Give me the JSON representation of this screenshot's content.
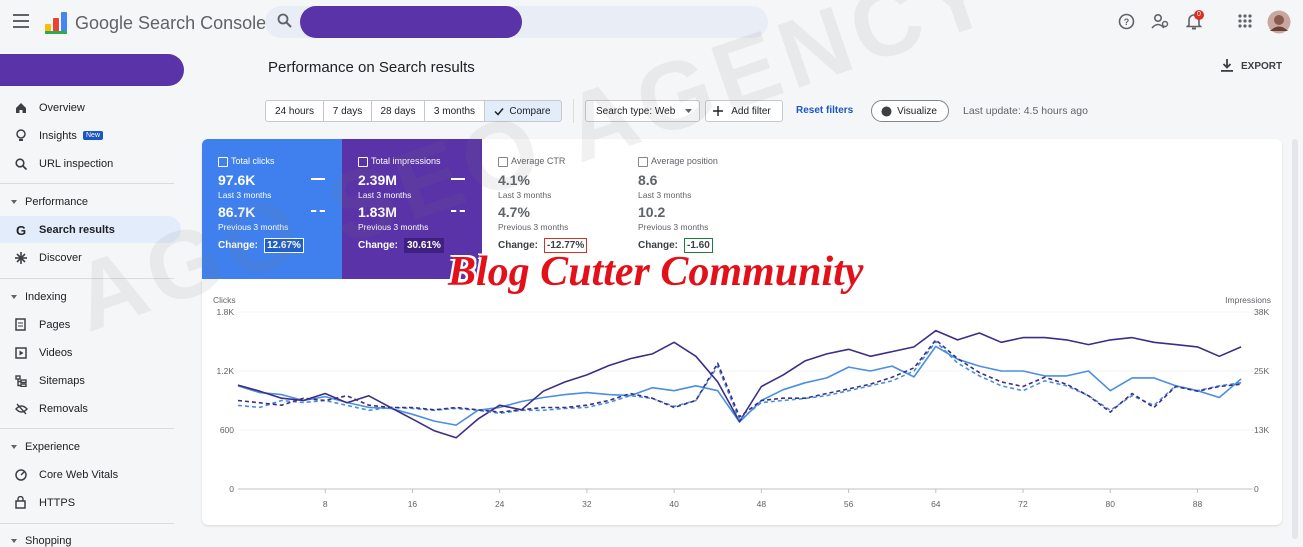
{
  "header": {
    "product": "Google Search Console",
    "notification_count": "0"
  },
  "sidebar": {
    "items": [
      {
        "label": "Overview"
      },
      {
        "label": "Insights",
        "badge": "New"
      },
      {
        "label": "URL inspection"
      }
    ],
    "sections": [
      {
        "title": "Performance",
        "items": [
          "Search results",
          "Discover"
        ]
      },
      {
        "title": "Indexing",
        "items": [
          "Pages",
          "Videos",
          "Sitemaps",
          "Removals"
        ]
      },
      {
        "title": "Experience",
        "items": [
          "Core Web Vitals",
          "HTTPS"
        ]
      },
      {
        "title": "Shopping"
      }
    ]
  },
  "page": {
    "title": "Performance on Search results",
    "export": "EXPORT"
  },
  "filters": {
    "date_ranges": [
      "24 hours",
      "7 days",
      "28 days",
      "3 months"
    ],
    "compare": "Compare",
    "search_type": "Search type: Web",
    "add_filter": "Add filter",
    "reset": "Reset filters",
    "visualize": "Visualize",
    "last_update": "Last update: 4.5 hours ago"
  },
  "metrics": [
    {
      "label": "Total clicks",
      "current": "97.6K",
      "current_period": "Last 3 months",
      "previous": "86.7K",
      "previous_period": "Previous 3 months",
      "change_label": "Change:",
      "change": "12.67%"
    },
    {
      "label": "Total impressions",
      "current": "2.39M",
      "current_period": "Last 3 months",
      "previous": "1.83M",
      "previous_period": "Previous 3 months",
      "change_label": "Change:",
      "change": "30.61%"
    },
    {
      "label": "Average CTR",
      "current": "4.1%",
      "current_period": "Last 3 months",
      "previous": "4.7%",
      "previous_period": "Previous 3 months",
      "change_label": "Change:",
      "change": "-12.77%"
    },
    {
      "label": "Average position",
      "current": "8.6",
      "current_period": "Last 3 months",
      "previous": "10.2",
      "previous_period": "Previous 3 months",
      "change_label": "Change:",
      "change": "-1.60"
    }
  ],
  "watermarks": [
    "Blog Cutter Community",
    "AGO SEO AGENCY"
  ],
  "chart_data": {
    "type": "line",
    "y_label": "Clicks",
    "y2_label": "Impressions",
    "x": [
      0,
      2,
      4,
      6,
      8,
      10,
      12,
      14,
      16,
      18,
      20,
      22,
      24,
      26,
      28,
      30,
      32,
      34,
      36,
      38,
      40,
      42,
      44,
      46,
      48,
      50,
      52,
      54,
      56,
      58,
      60,
      62,
      64,
      66,
      68,
      70,
      72,
      74,
      76,
      78,
      80,
      82,
      84,
      86,
      88,
      90,
      92
    ],
    "xlim": [
      0,
      93
    ],
    "xticks": [
      8,
      16,
      24,
      32,
      40,
      48,
      56,
      64,
      72,
      80,
      88
    ],
    "ylim": [
      0,
      1800
    ],
    "yticks": [
      0,
      600,
      {
        "value": 1200,
        "label": "1.2K"
      },
      {
        "value": 1800,
        "label": "1.8K"
      }
    ],
    "y2lim": [
      0,
      38000
    ],
    "y2ticks": [
      0,
      {
        "value": 12667,
        "label": "13K"
      },
      {
        "value": 25333,
        "label": "25K"
      },
      {
        "value": 38000,
        "label": "38K"
      }
    ],
    "grid": true,
    "series": [
      {
        "color": "#4a8fe0",
        "dashed": false,
        "values": [
          1050,
          980,
          960,
          900,
          940,
          880,
          830,
          820,
          760,
          690,
          650,
          800,
          830,
          890,
          930,
          960,
          980,
          960,
          950,
          1030,
          1000,
          1050,
          1000,
          680,
          900,
          1010,
          1080,
          1130,
          1240,
          1200,
          1250,
          1140,
          1450,
          1320,
          1250,
          1200,
          1200,
          1150,
          1150,
          1200,
          1000,
          1130,
          1130,
          1050,
          1000,
          930,
          1120
        ]
      },
      {
        "color": "#3d2d85",
        "dashed": false,
        "axis": "y2",
        "values": [
          22300,
          21000,
          19500,
          19000,
          20500,
          18500,
          20000,
          17500,
          15000,
          12500,
          11000,
          15000,
          18000,
          17000,
          21000,
          23000,
          24500,
          26500,
          28000,
          29000,
          31500,
          28500,
          23000,
          14500,
          22000,
          24500,
          27500,
          29000,
          30000,
          28500,
          29500,
          30500,
          34000,
          32000,
          33500,
          31500,
          32500,
          32500,
          32000,
          31000,
          32000,
          32500,
          31500,
          31000,
          30500,
          28500,
          30500
        ]
      },
      {
        "color": "#4a8fe0",
        "dashed": true,
        "values": [
          850,
          830,
          900,
          880,
          900,
          850,
          800,
          830,
          820,
          800,
          820,
          800,
          770,
          800,
          800,
          820,
          830,
          880,
          950,
          920,
          840,
          900,
          1250,
          700,
          880,
          900,
          920,
          950,
          1000,
          1050,
          1100,
          1200,
          1500,
          1280,
          1150,
          1050,
          1000,
          1100,
          1050,
          950,
          800,
          950,
          850,
          1050,
          1000,
          1050,
          1080
        ]
      },
      {
        "color": "#3d2d85",
        "dashed": true,
        "axis": "y2",
        "values": [
          19000,
          18500,
          18000,
          19500,
          19000,
          20000,
          18000,
          17500,
          17500,
          17000,
          17500,
          17000,
          16500,
          17000,
          17500,
          17500,
          18000,
          19000,
          20500,
          19500,
          17500,
          19000,
          27000,
          15500,
          19000,
          19500,
          19500,
          20500,
          21500,
          22500,
          24000,
          26000,
          32000,
          28000,
          25000,
          23000,
          22000,
          24000,
          22500,
          20000,
          16500,
          20500,
          17500,
          22000,
          21000,
          22000,
          22500
        ]
      }
    ]
  }
}
